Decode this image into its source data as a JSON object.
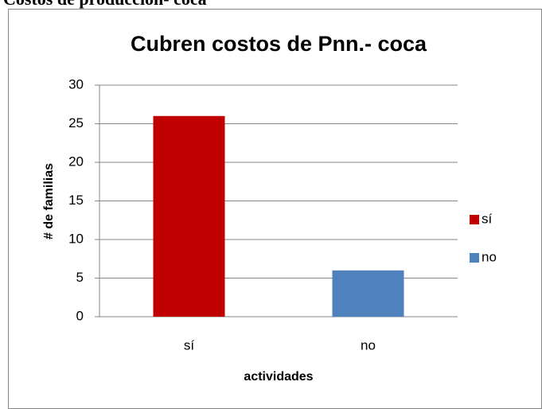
{
  "header": "Costos de producción- coca",
  "chart_data": {
    "type": "bar",
    "title": "Cubren costos de Pnn.- coca",
    "categories": [
      "sí",
      "no"
    ],
    "values": [
      26,
      6
    ],
    "colors": [
      "#c00000",
      "#4f81bd"
    ],
    "ylim": [
      0,
      30
    ],
    "yticks": [
      0,
      5,
      10,
      15,
      20,
      25,
      30
    ],
    "grid": true,
    "xlabel": "actividades",
    "ylabel": "# de familias",
    "legend": "right"
  }
}
